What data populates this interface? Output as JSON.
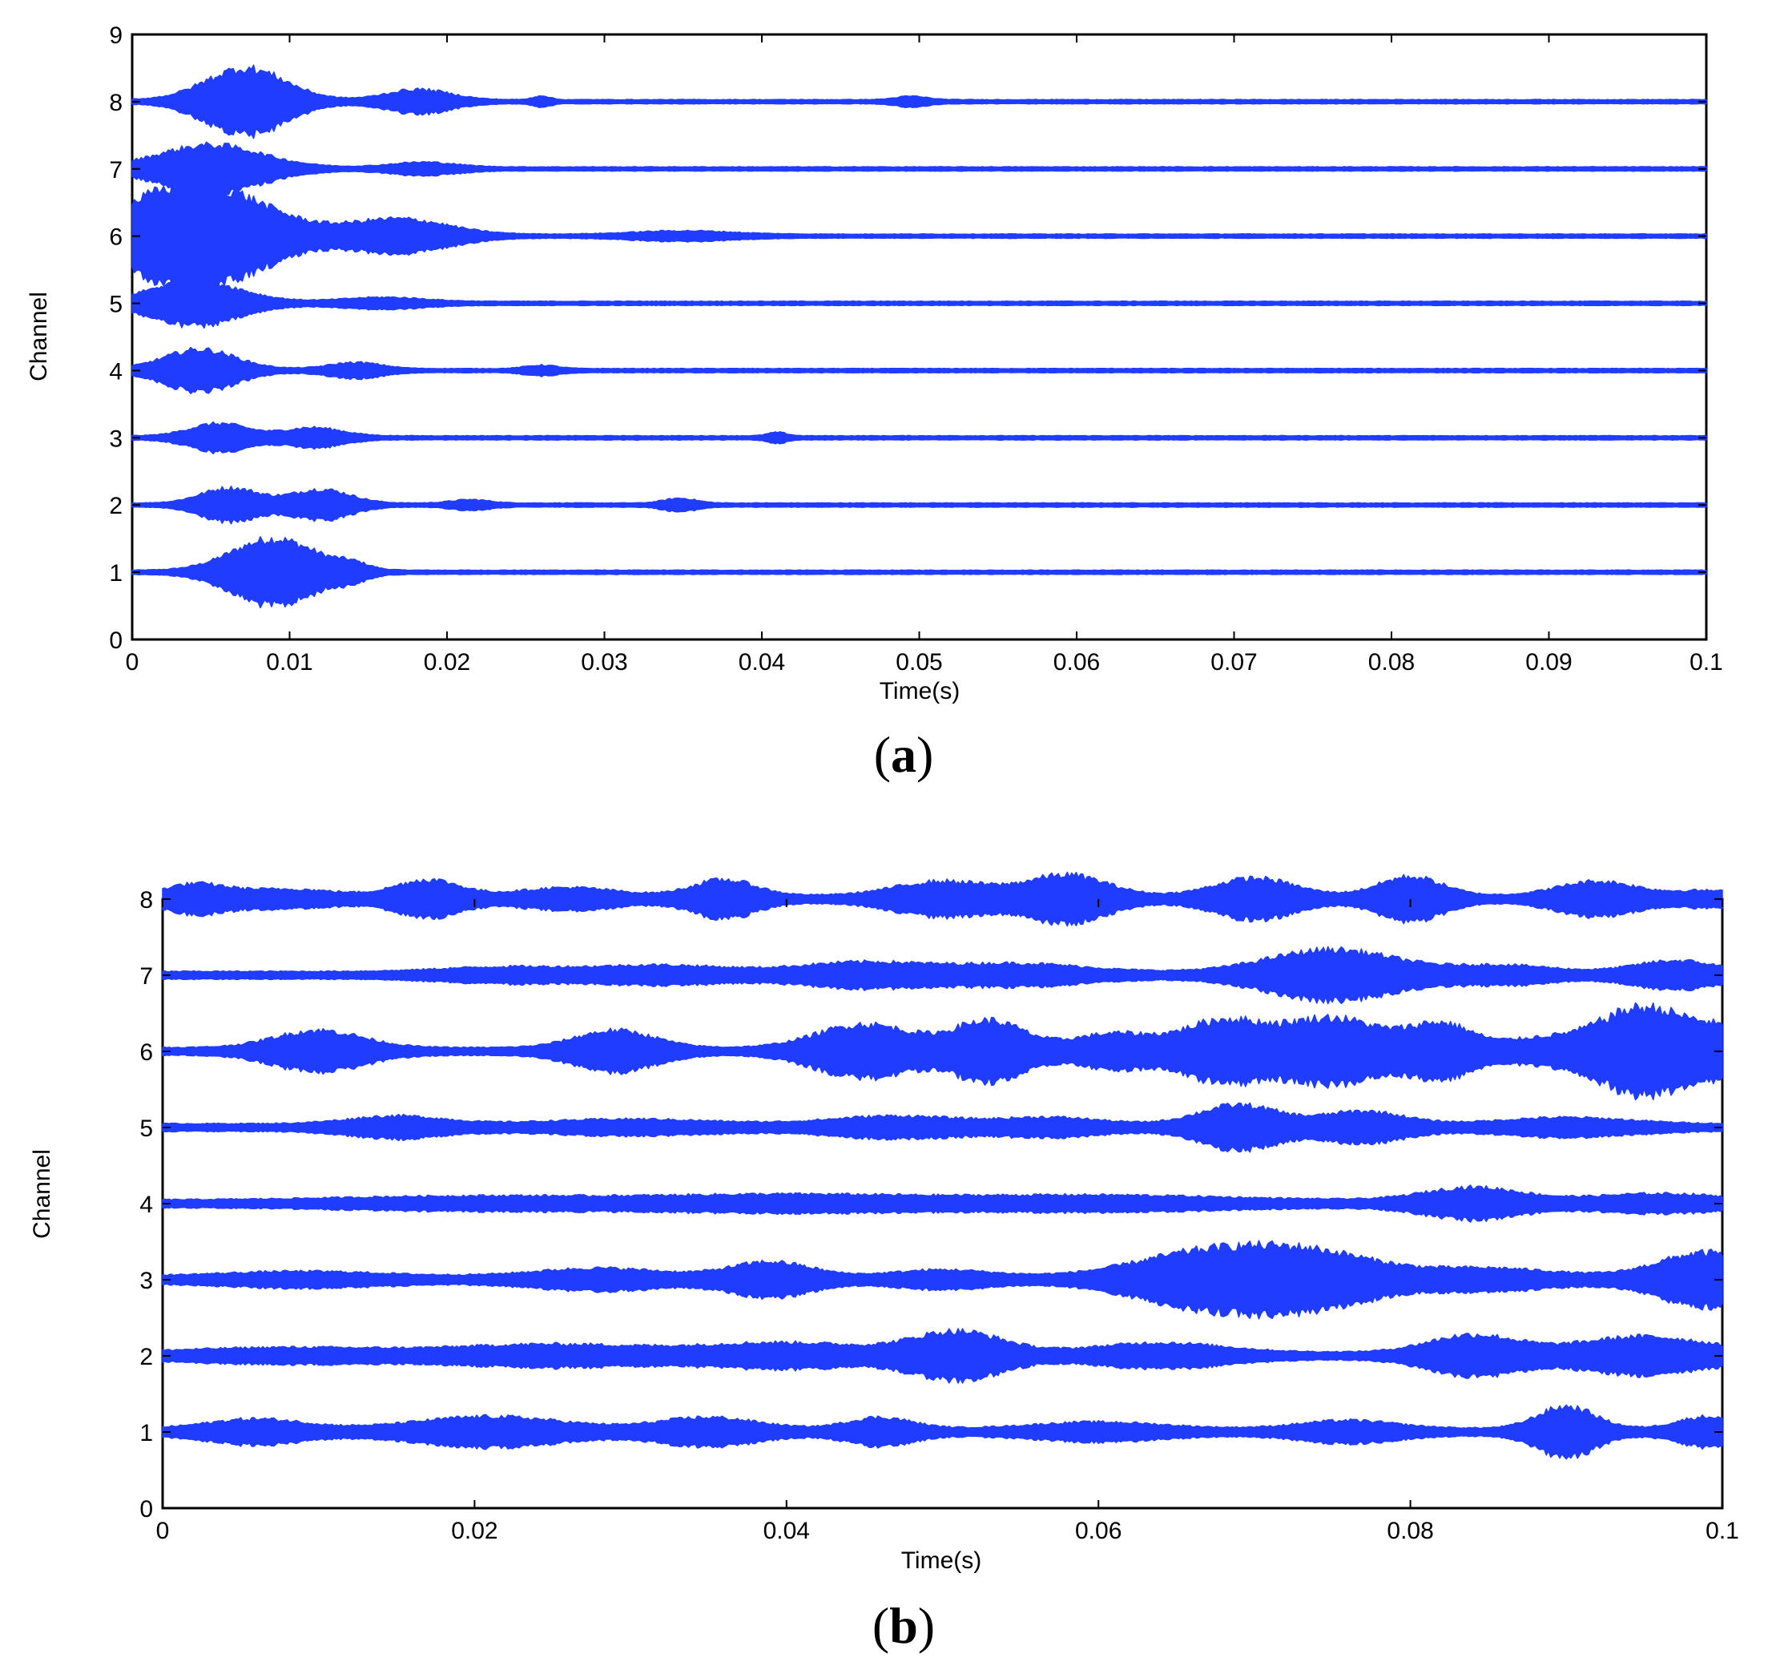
{
  "chart_data": [
    {
      "type": "line",
      "panel_label": "a",
      "xlabel": "Time(s)",
      "ylabel": "Channel",
      "xlim": [
        0,
        0.1
      ],
      "ylim": [
        0,
        9
      ],
      "x_ticks": [
        "0",
        "0.01",
        "0.02",
        "0.03",
        "0.04",
        "0.05",
        "0.06",
        "0.07",
        "0.08",
        "0.09",
        "0.1"
      ],
      "y_ticks": [
        "0",
        "1",
        "2",
        "3",
        "4",
        "5",
        "6",
        "7",
        "8",
        "9"
      ],
      "grid": false,
      "line_color": "#1f3cff",
      "noise_amplitude": 0.03,
      "series": [
        {
          "channel": 1,
          "bursts": [
            {
              "t": 0.009,
              "w": 0.0026,
              "a": 0.46
            },
            {
              "t": 0.014,
              "w": 0.001,
              "a": 0.08
            }
          ]
        },
        {
          "channel": 2,
          "bursts": [
            {
              "t": 0.0062,
              "w": 0.0018,
              "a": 0.22
            },
            {
              "t": 0.012,
              "w": 0.0018,
              "a": 0.2
            },
            {
              "t": 0.0215,
              "w": 0.0012,
              "a": 0.05
            },
            {
              "t": 0.0348,
              "w": 0.001,
              "a": 0.07
            }
          ]
        },
        {
          "channel": 3,
          "bursts": [
            {
              "t": 0.0055,
              "w": 0.0018,
              "a": 0.18
            },
            {
              "t": 0.0115,
              "w": 0.0018,
              "a": 0.12
            },
            {
              "t": 0.041,
              "w": 0.0006,
              "a": 0.05
            }
          ]
        },
        {
          "channel": 4,
          "bursts": [
            {
              "t": 0.0043,
              "w": 0.0022,
              "a": 0.28
            },
            {
              "t": 0.0142,
              "w": 0.0016,
              "a": 0.09
            },
            {
              "t": 0.026,
              "w": 0.001,
              "a": 0.05
            }
          ]
        },
        {
          "channel": 5,
          "bursts": [
            {
              "t": 0.004,
              "w": 0.0028,
              "a": 0.3
            },
            {
              "t": 0.016,
              "w": 0.0025,
              "a": 0.06
            }
          ]
        },
        {
          "channel": 6,
          "bursts": [
            {
              "t": 0.004,
              "w": 0.0042,
              "a": 0.74
            },
            {
              "t": 0.017,
              "w": 0.003,
              "a": 0.22
            },
            {
              "t": 0.035,
              "w": 0.003,
              "a": 0.05
            }
          ]
        },
        {
          "channel": 7,
          "bursts": [
            {
              "t": 0.005,
              "w": 0.0032,
              "a": 0.32
            },
            {
              "t": 0.0185,
              "w": 0.002,
              "a": 0.07
            }
          ]
        },
        {
          "channel": 8,
          "bursts": [
            {
              "t": 0.0072,
              "w": 0.0025,
              "a": 0.46
            },
            {
              "t": 0.0182,
              "w": 0.002,
              "a": 0.15
            },
            {
              "t": 0.026,
              "w": 0.0005,
              "a": 0.06
            },
            {
              "t": 0.0495,
              "w": 0.001,
              "a": 0.05
            }
          ]
        }
      ]
    },
    {
      "type": "line",
      "panel_label": "b",
      "xlabel": "Time(s)",
      "ylabel": "Channel",
      "xlim": [
        0,
        0.1
      ],
      "ylim": [
        0,
        8
      ],
      "x_ticks": [
        "0",
        "0.02",
        "0.04",
        "0.06",
        "0.08",
        "0.1"
      ],
      "y_ticks": [
        "0",
        "1",
        "2",
        "3",
        "4",
        "5",
        "6",
        "7",
        "8"
      ],
      "grid": false,
      "line_color": "#1f3cff",
      "noise_amplitude": 0.05,
      "series": [
        {
          "channel": 1,
          "bursts": [
            {
              "t": 0.006,
              "w": 0.003,
              "a": 0.12
            },
            {
              "t": 0.021,
              "w": 0.0045,
              "a": 0.15
            },
            {
              "t": 0.035,
              "w": 0.003,
              "a": 0.14
            },
            {
              "t": 0.046,
              "w": 0.002,
              "a": 0.14
            },
            {
              "t": 0.06,
              "w": 0.004,
              "a": 0.08
            },
            {
              "t": 0.076,
              "w": 0.003,
              "a": 0.1
            },
            {
              "t": 0.09,
              "w": 0.0018,
              "a": 0.28
            },
            {
              "t": 0.099,
              "w": 0.0018,
              "a": 0.15
            }
          ]
        },
        {
          "channel": 2,
          "bursts": [
            {
              "t": 0.008,
              "w": 0.006,
              "a": 0.06
            },
            {
              "t": 0.025,
              "w": 0.006,
              "a": 0.1
            },
            {
              "t": 0.04,
              "w": 0.005,
              "a": 0.12
            },
            {
              "t": 0.051,
              "w": 0.0028,
              "a": 0.26
            },
            {
              "t": 0.064,
              "w": 0.004,
              "a": 0.12
            },
            {
              "t": 0.084,
              "w": 0.0028,
              "a": 0.22
            },
            {
              "t": 0.095,
              "w": 0.004,
              "a": 0.2
            }
          ]
        },
        {
          "channel": 3,
          "bursts": [
            {
              "t": 0.009,
              "w": 0.005,
              "a": 0.06
            },
            {
              "t": 0.028,
              "w": 0.004,
              "a": 0.1
            },
            {
              "t": 0.039,
              "w": 0.0025,
              "a": 0.18
            },
            {
              "t": 0.05,
              "w": 0.003,
              "a": 0.08
            },
            {
              "t": 0.067,
              "w": 0.0045,
              "a": 0.3
            },
            {
              "t": 0.074,
              "w": 0.004,
              "a": 0.26
            },
            {
              "t": 0.085,
              "w": 0.004,
              "a": 0.1
            },
            {
              "t": 0.099,
              "w": 0.003,
              "a": 0.3
            }
          ]
        },
        {
          "channel": 4,
          "bursts": [
            {
              "t": 0.02,
              "w": 0.008,
              "a": 0.05
            },
            {
              "t": 0.04,
              "w": 0.008,
              "a": 0.07
            },
            {
              "t": 0.06,
              "w": 0.008,
              "a": 0.06
            },
            {
              "t": 0.084,
              "w": 0.003,
              "a": 0.16
            },
            {
              "t": 0.096,
              "w": 0.004,
              "a": 0.08
            }
          ]
        },
        {
          "channel": 5,
          "bursts": [
            {
              "t": 0.015,
              "w": 0.003,
              "a": 0.1
            },
            {
              "t": 0.03,
              "w": 0.005,
              "a": 0.06
            },
            {
              "t": 0.047,
              "w": 0.004,
              "a": 0.1
            },
            {
              "t": 0.057,
              "w": 0.003,
              "a": 0.08
            },
            {
              "t": 0.069,
              "w": 0.0025,
              "a": 0.24
            },
            {
              "t": 0.077,
              "w": 0.0025,
              "a": 0.16
            },
            {
              "t": 0.09,
              "w": 0.004,
              "a": 0.08
            }
          ]
        },
        {
          "channel": 6,
          "bursts": [
            {
              "t": 0.01,
              "w": 0.0028,
              "a": 0.22
            },
            {
              "t": 0.029,
              "w": 0.0025,
              "a": 0.22
            },
            {
              "t": 0.045,
              "w": 0.003,
              "a": 0.3
            },
            {
              "t": 0.053,
              "w": 0.0022,
              "a": 0.34
            },
            {
              "t": 0.061,
              "w": 0.0025,
              "a": 0.18
            },
            {
              "t": 0.068,
              "w": 0.0025,
              "a": 0.34
            },
            {
              "t": 0.075,
              "w": 0.003,
              "a": 0.38
            },
            {
              "t": 0.082,
              "w": 0.002,
              "a": 0.3
            },
            {
              "t": 0.088,
              "w": 0.002,
              "a": 0.1
            },
            {
              "t": 0.095,
              "w": 0.003,
              "a": 0.52
            },
            {
              "t": 0.1,
              "w": 0.0015,
              "a": 0.16
            }
          ]
        },
        {
          "channel": 7,
          "bursts": [
            {
              "t": 0.022,
              "w": 0.004,
              "a": 0.06
            },
            {
              "t": 0.032,
              "w": 0.004,
              "a": 0.08
            },
            {
              "t": 0.045,
              "w": 0.004,
              "a": 0.12
            },
            {
              "t": 0.055,
              "w": 0.004,
              "a": 0.1
            },
            {
              "t": 0.075,
              "w": 0.004,
              "a": 0.28
            },
            {
              "t": 0.086,
              "w": 0.003,
              "a": 0.08
            },
            {
              "t": 0.097,
              "w": 0.0025,
              "a": 0.14
            }
          ]
        },
        {
          "channel": 8,
          "bursts": [
            {
              "t": 0.002,
              "w": 0.002,
              "a": 0.14
            },
            {
              "t": 0.008,
              "w": 0.003,
              "a": 0.08
            },
            {
              "t": 0.017,
              "w": 0.002,
              "a": 0.2
            },
            {
              "t": 0.026,
              "w": 0.003,
              "a": 0.1
            },
            {
              "t": 0.036,
              "w": 0.002,
              "a": 0.2
            },
            {
              "t": 0.05,
              "w": 0.003,
              "a": 0.18
            },
            {
              "t": 0.058,
              "w": 0.0025,
              "a": 0.26
            },
            {
              "t": 0.07,
              "w": 0.0025,
              "a": 0.22
            },
            {
              "t": 0.08,
              "w": 0.002,
              "a": 0.24
            },
            {
              "t": 0.092,
              "w": 0.0025,
              "a": 0.18
            },
            {
              "t": 0.099,
              "w": 0.002,
              "a": 0.06
            }
          ]
        }
      ]
    }
  ]
}
